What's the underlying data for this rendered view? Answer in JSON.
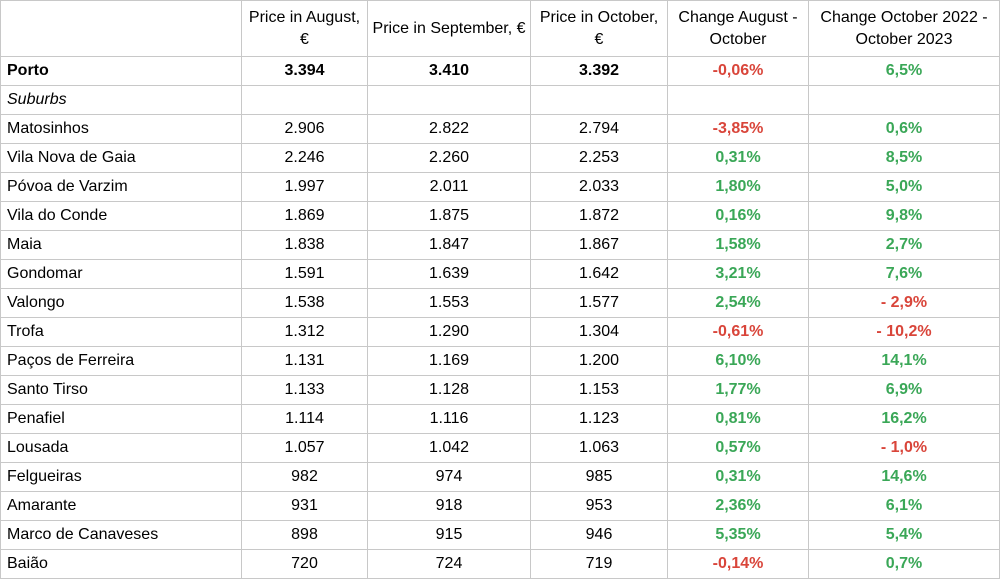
{
  "header": {
    "col0": "",
    "col1": "Price in August, €",
    "col2": "Price in September, €",
    "col3": "Price in October, €",
    "col4": "Change August - October",
    "col5": "Change October 2022 - October 2023"
  },
  "colors": {
    "positive": "#3aa757",
    "negative": "#d9453a"
  },
  "porto": {
    "name": "Porto",
    "aug": "3.394",
    "sep": "3.410",
    "oct": "3.392",
    "chg1": "-0,06%",
    "chg2": "6,5%"
  },
  "section_label": "Suburbs",
  "rows": [
    {
      "name": "Matosinhos",
      "aug": "2.906",
      "sep": "2.822",
      "oct": "2.794",
      "chg1": "-3,85%",
      "chg2": "0,6%"
    },
    {
      "name": "Vila Nova de Gaia",
      "aug": "2.246",
      "sep": "2.260",
      "oct": "2.253",
      "chg1": "0,31%",
      "chg2": "8,5%"
    },
    {
      "name": "Póvoa de Varzim",
      "aug": "1.997",
      "sep": "2.011",
      "oct": "2.033",
      "chg1": "1,80%",
      "chg2": "5,0%"
    },
    {
      "name": "Vila do Conde",
      "aug": "1.869",
      "sep": "1.875",
      "oct": "1.872",
      "chg1": "0,16%",
      "chg2": "9,8%"
    },
    {
      "name": "Maia",
      "aug": "1.838",
      "sep": "1.847",
      "oct": "1.867",
      "chg1": "1,58%",
      "chg2": "2,7%"
    },
    {
      "name": "Gondomar",
      "aug": "1.591",
      "sep": "1.639",
      "oct": "1.642",
      "chg1": "3,21%",
      "chg2": "7,6%"
    },
    {
      "name": "Valongo",
      "aug": "1.538",
      "sep": "1.553",
      "oct": "1.577",
      "chg1": "2,54%",
      "chg2": "- 2,9%"
    },
    {
      "name": "Trofa",
      "aug": "1.312",
      "sep": "1.290",
      "oct": "1.304",
      "chg1": "-0,61%",
      "chg2": "- 10,2%"
    },
    {
      "name": "Paços de Ferreira",
      "aug": "1.131",
      "sep": "1.169",
      "oct": "1.200",
      "chg1": "6,10%",
      "chg2": "14,1%"
    },
    {
      "name": "Santo Tirso",
      "aug": "1.133",
      "sep": "1.128",
      "oct": "1.153",
      "chg1": "1,77%",
      "chg2": "6,9%"
    },
    {
      "name": "Penafiel",
      "aug": "1.114",
      "sep": "1.116",
      "oct": "1.123",
      "chg1": "0,81%",
      "chg2": "16,2%"
    },
    {
      "name": "Lousada",
      "aug": "1.057",
      "sep": "1.042",
      "oct": "1.063",
      "chg1": "0,57%",
      "chg2": "- 1,0%"
    },
    {
      "name": "Felgueiras",
      "aug": "982",
      "sep": "974",
      "oct": "985",
      "chg1": "0,31%",
      "chg2": "14,6%"
    },
    {
      "name": "Amarante",
      "aug": "931",
      "sep": "918",
      "oct": "953",
      "chg1": "2,36%",
      "chg2": "6,1%"
    },
    {
      "name": "Marco de Canaveses",
      "aug": "898",
      "sep": "915",
      "oct": "946",
      "chg1": "5,35%",
      "chg2": "5,4%"
    },
    {
      "name": "Baião",
      "aug": "720",
      "sep": "724",
      "oct": "719",
      "chg1": "-0,14%",
      "chg2": "0,7%"
    }
  ]
}
